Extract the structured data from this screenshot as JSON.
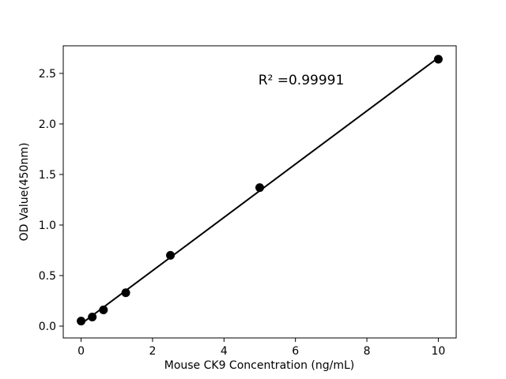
{
  "chart_data": {
    "type": "scatter",
    "title": "",
    "xlabel": "Mouse CK9 Concentration (ng/mL)",
    "ylabel": "OD Value(450nm)",
    "annotation": "R² =0.99991",
    "x": [
      0,
      0.3125,
      0.625,
      1.25,
      2.5,
      5,
      10
    ],
    "y": [
      0.05,
      0.09,
      0.16,
      0.33,
      0.7,
      1.37,
      2.64
    ],
    "fit_line": true,
    "xlim": [
      -0.5,
      10.5
    ],
    "ylim": [
      -0.117,
      2.773
    ],
    "xticks": [
      0,
      2,
      4,
      6,
      8,
      10
    ],
    "xtick_labels": [
      "0",
      "2",
      "4",
      "6",
      "8",
      "10"
    ],
    "yticks": [
      0.0,
      0.5,
      1.0,
      1.5,
      2.0,
      2.5
    ],
    "ytick_labels": [
      "0.0",
      "0.5",
      "1.0",
      "1.5",
      "2.0",
      "2.5"
    ],
    "grid": false,
    "legend": null,
    "marker_color": "#000000",
    "line_color": "#000000",
    "axis_color": "#000000",
    "background": "#ffffff"
  }
}
